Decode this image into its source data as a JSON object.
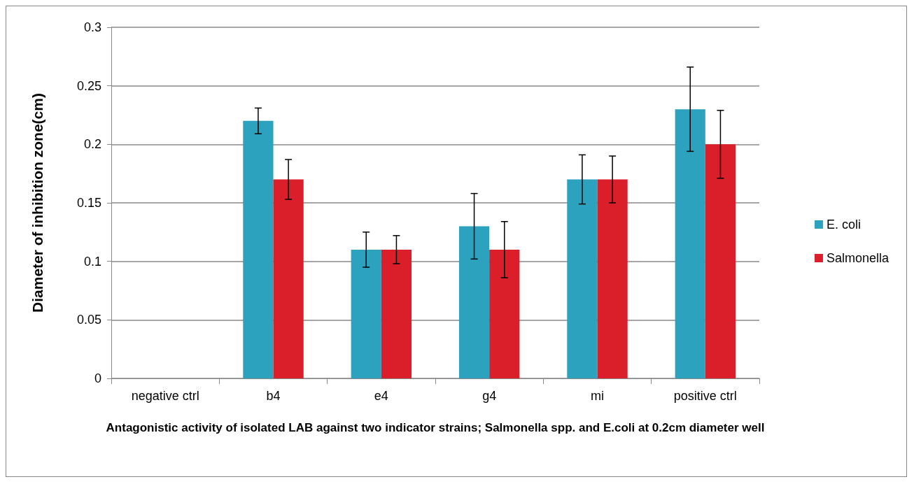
{
  "chart_data": {
    "type": "bar",
    "xlabel": "Antagonistic activity of isolated LAB against two indicator strains; Salmonella spp. and E.coli at 0.2cm diameter well",
    "ylabel": "Diameter of inhibition zone(cm)",
    "categories": [
      "negative ctrl",
      "b4",
      "e4",
      "g4",
      "mi",
      "positive ctrl"
    ],
    "series": [
      {
        "name": "E. coli",
        "color": "#2ca2bf",
        "values": [
          0,
          0.22,
          0.11,
          0.13,
          0.17,
          0.23
        ],
        "errors": [
          null,
          0.011,
          0.015,
          0.028,
          0.021,
          0.036
        ]
      },
      {
        "name": "Salmonella",
        "color": "#da1f2a",
        "values": [
          0,
          0.17,
          0.11,
          0.11,
          0.17,
          0.2
        ],
        "errors": [
          null,
          0.017,
          0.012,
          0.024,
          0.02,
          0.029
        ]
      }
    ],
    "ylim": [
      0,
      0.3
    ],
    "yticks": [
      0,
      0.05,
      0.1,
      0.15,
      0.2,
      0.25,
      0.3
    ],
    "grid": "y",
    "legend": "right"
  }
}
